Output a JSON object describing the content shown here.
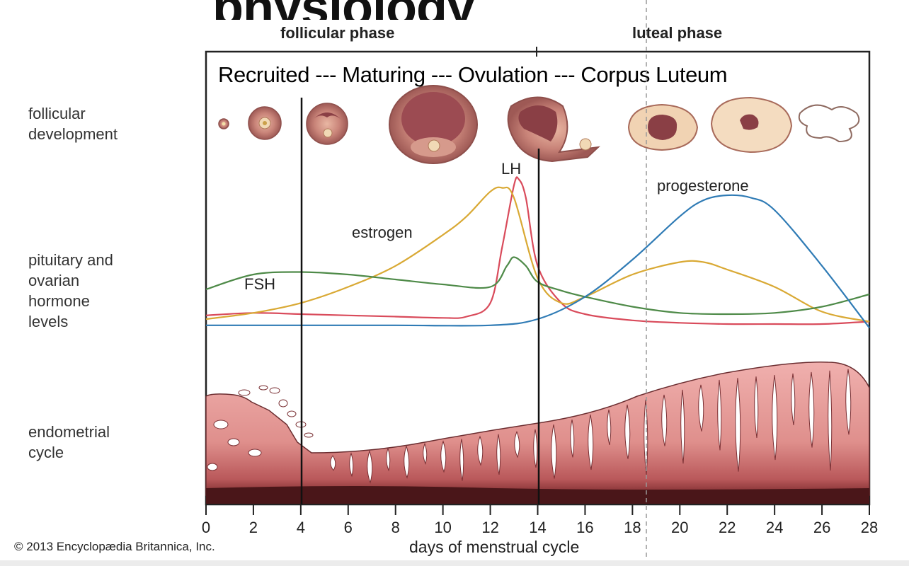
{
  "header": {
    "partial_title": "physiology"
  },
  "phases": {
    "follicular": "follicular phase",
    "luteal": "luteal phase"
  },
  "stages_caption": "Recruited --- Maturing --- Ovulation --- Corpus Luteum",
  "rows": {
    "follicular": "follicular\ndevelopment",
    "hormones": "pituitary and\novarian\nhormone\nlevels",
    "endometrial": "endometrial\ncycle"
  },
  "hormone_labels": {
    "lh": "LH",
    "progesterone": "progesterone",
    "estrogen": "estrogen",
    "fsh": "FSH"
  },
  "colors": {
    "estrogen": "#d9a934",
    "lh": "#d94b5b",
    "fsh": "#4e8a48",
    "progesterone": "#2f7bb5",
    "endometrium": "#e8a2a2"
  },
  "x_axis": {
    "label": "days of menstrual cycle",
    "ticks": [
      "0",
      "2",
      "4",
      "6",
      "8",
      "10",
      "12",
      "14",
      "16",
      "18",
      "20",
      "22",
      "24",
      "26",
      "28"
    ]
  },
  "copyright": "© 2013 Encyclopædia Britannica, Inc.",
  "chart_data": {
    "type": "line",
    "xlabel": "days of menstrual cycle",
    "xlim": [
      0,
      28
    ],
    "series": [
      {
        "name": "LH",
        "x": [
          0,
          2,
          4,
          6,
          8,
          10,
          11,
          12,
          12.5,
          13,
          13.2,
          13.5,
          14,
          15,
          16,
          18,
          20,
          22,
          24,
          26,
          28
        ],
        "y": [
          15,
          17,
          16,
          15,
          14,
          13,
          14,
          25,
          70,
          120,
          125,
          110,
          55,
          25,
          16,
          11,
          9,
          8,
          8,
          8,
          10
        ]
      },
      {
        "name": "estrogen",
        "x": [
          0,
          2,
          4,
          6,
          8,
          10,
          11,
          12,
          12.5,
          13,
          14,
          15,
          16,
          18,
          20,
          21,
          22,
          24,
          26,
          28
        ],
        "y": [
          12,
          17,
          25,
          38,
          55,
          80,
          95,
          115,
          118,
          110,
          45,
          25,
          30,
          48,
          58,
          58,
          52,
          38,
          18,
          10
        ]
      },
      {
        "name": "FSH",
        "x": [
          0,
          2,
          4,
          6,
          8,
          10,
          12,
          12.7,
          13,
          13.5,
          14,
          15,
          16,
          18,
          20,
          22,
          24,
          26,
          28
        ],
        "y": [
          36,
          48,
          50,
          48,
          44,
          40,
          38,
          55,
          62,
          55,
          42,
          35,
          30,
          22,
          17,
          16,
          17,
          22,
          32
        ]
      },
      {
        "name": "progesterone",
        "x": [
          0,
          4,
          8,
          12,
          14,
          16,
          18,
          20,
          21,
          22,
          23,
          24,
          26,
          28
        ],
        "y": [
          7,
          7,
          7,
          7,
          12,
          30,
          60,
          95,
          108,
          112,
          110,
          100,
          55,
          5
        ]
      }
    ]
  }
}
